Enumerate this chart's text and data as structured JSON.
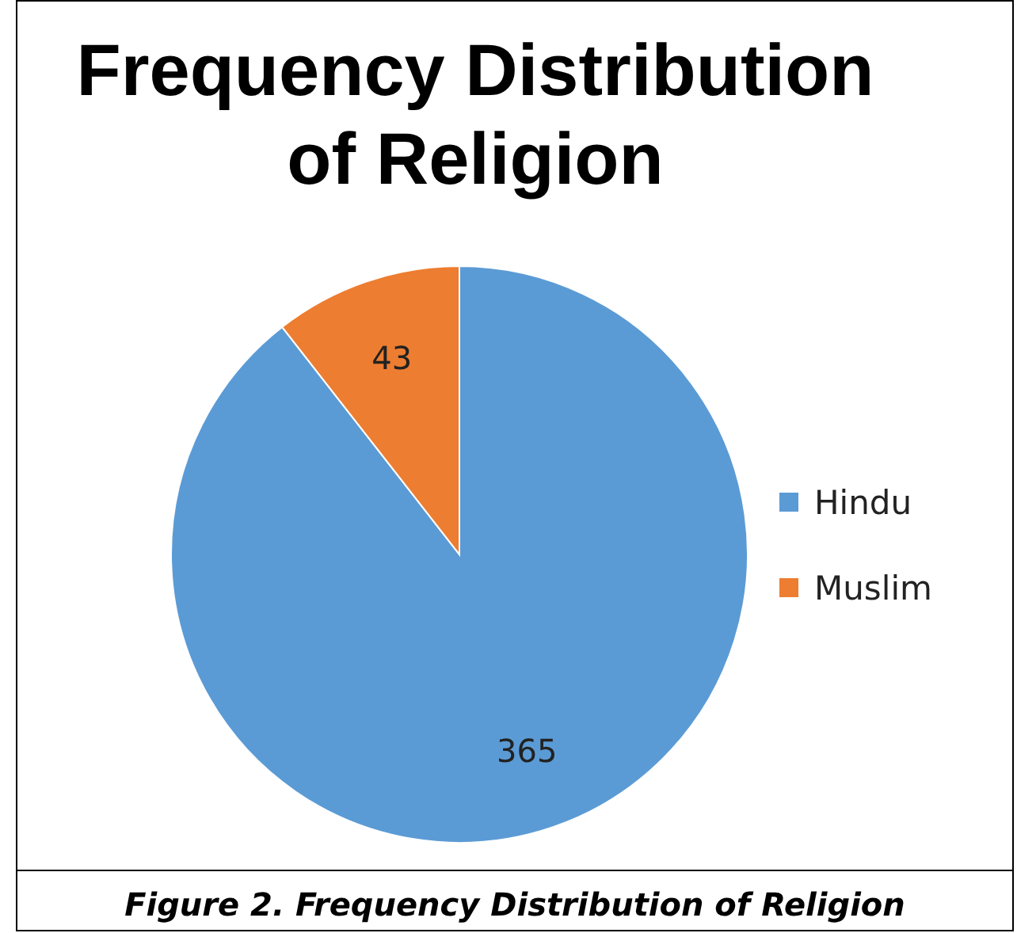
{
  "chart_data": {
    "type": "pie",
    "title": "Frequency Distribution of Religion",
    "categories": [
      "Hindu",
      "Muslim"
    ],
    "values": [
      365,
      43
    ],
    "colors": [
      "#5b9bd5",
      "#ed7d31"
    ],
    "data_labels": true,
    "legend": "right",
    "annotations": [
      "Figure 2. Frequency Distribution of Religion"
    ]
  }
}
